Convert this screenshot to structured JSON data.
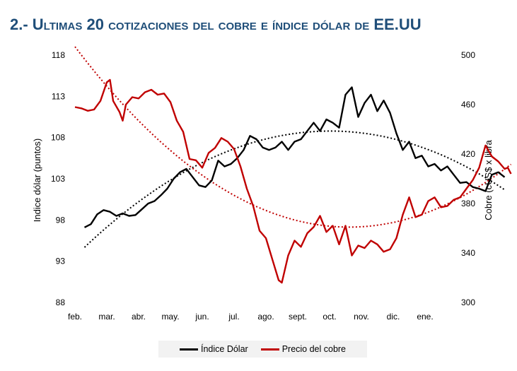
{
  "colors": {
    "dollar": "#000000",
    "copper": "#c00000",
    "title": "#1f4e79"
  },
  "chart_data": {
    "type": "line",
    "title": "2.- Ultimas 20 cotizaciones del cobre e índice dólar de EE.UU",
    "x_labels": [
      "feb.",
      "mar.",
      "abr.",
      "may.",
      "jun.",
      "jul.",
      "ago.",
      "sept.",
      "oct.",
      "nov.",
      "dic.",
      "ene."
    ],
    "y_left": {
      "label": "Indice dólar (puntos)",
      "ticks": [
        "118",
        "113",
        "108",
        "103",
        "98",
        "93",
        "88"
      ],
      "range": [
        88,
        118
      ]
    },
    "y_right": {
      "label": "Cobre (cUS$ x libra",
      "ticks": [
        "500",
        "460",
        "420",
        "380",
        "340",
        "300"
      ],
      "range": [
        300,
        500
      ]
    },
    "grid": false,
    "legend_position": "bottom",
    "series": [
      {
        "name": "Índice Dólar",
        "axis": "left",
        "trendline": "polynomial",
        "points": [
          [
            0.3,
            97.1
          ],
          [
            0.5,
            97.5
          ],
          [
            0.7,
            98.7
          ],
          [
            0.9,
            99.2
          ],
          [
            1.1,
            99.0
          ],
          [
            1.3,
            98.5
          ],
          [
            1.5,
            98.8
          ],
          [
            1.7,
            98.5
          ],
          [
            1.9,
            98.6
          ],
          [
            2.1,
            99.3
          ],
          [
            2.3,
            100.0
          ],
          [
            2.5,
            100.3
          ],
          [
            2.7,
            101.0
          ],
          [
            2.9,
            101.8
          ],
          [
            3.1,
            103.0
          ],
          [
            3.3,
            103.8
          ],
          [
            3.5,
            104.2
          ],
          [
            3.7,
            103.2
          ],
          [
            3.9,
            102.2
          ],
          [
            4.1,
            102.0
          ],
          [
            4.3,
            102.8
          ],
          [
            4.5,
            105.2
          ],
          [
            4.7,
            104.5
          ],
          [
            4.9,
            104.8
          ],
          [
            5.1,
            105.5
          ],
          [
            5.3,
            106.5
          ],
          [
            5.5,
            108.2
          ],
          [
            5.7,
            107.8
          ],
          [
            5.9,
            106.8
          ],
          [
            6.1,
            106.5
          ],
          [
            6.3,
            106.8
          ],
          [
            6.5,
            107.5
          ],
          [
            6.7,
            106.5
          ],
          [
            6.9,
            107.5
          ],
          [
            7.1,
            107.8
          ],
          [
            7.3,
            108.8
          ],
          [
            7.5,
            109.8
          ],
          [
            7.7,
            108.8
          ],
          [
            7.9,
            110.2
          ],
          [
            8.1,
            109.8
          ],
          [
            8.3,
            109.2
          ],
          [
            8.5,
            113.2
          ],
          [
            8.7,
            114.1
          ],
          [
            8.9,
            110.5
          ],
          [
            9.1,
            112.2
          ],
          [
            9.3,
            113.2
          ],
          [
            9.5,
            111.2
          ],
          [
            9.7,
            112.5
          ],
          [
            9.9,
            111.0
          ],
          [
            10.1,
            108.5
          ],
          [
            10.3,
            106.5
          ],
          [
            10.5,
            107.5
          ],
          [
            10.7,
            105.5
          ],
          [
            10.9,
            105.8
          ],
          [
            11.1,
            104.5
          ],
          [
            11.3,
            104.8
          ],
          [
            11.5,
            104.0
          ],
          [
            11.7,
            104.5
          ],
          [
            11.9,
            103.5
          ],
          [
            12.1,
            102.5
          ],
          [
            12.3,
            102.6
          ],
          [
            12.5,
            102.0
          ],
          [
            12.7,
            101.8
          ],
          [
            12.9,
            101.5
          ],
          [
            13.1,
            103.5
          ],
          [
            13.3,
            103.8
          ],
          [
            13.5,
            103.2
          ]
        ]
      },
      {
        "name": "Precio del cobre",
        "axis": "right",
        "trendline": "polynomial",
        "points": [
          [
            0.0,
            458
          ],
          [
            0.2,
            457
          ],
          [
            0.4,
            455
          ],
          [
            0.6,
            456
          ],
          [
            0.8,
            463
          ],
          [
            1.0,
            478
          ],
          [
            1.1,
            480
          ],
          [
            1.2,
            463
          ],
          [
            1.4,
            454
          ],
          [
            1.5,
            447
          ],
          [
            1.6,
            460
          ],
          [
            1.8,
            466
          ],
          [
            2.0,
            465
          ],
          [
            2.2,
            470
          ],
          [
            2.4,
            472
          ],
          [
            2.6,
            468
          ],
          [
            2.8,
            469
          ],
          [
            3.0,
            462
          ],
          [
            3.2,
            447
          ],
          [
            3.4,
            438
          ],
          [
            3.6,
            416
          ],
          [
            3.8,
            415
          ],
          [
            4.0,
            409
          ],
          [
            4.2,
            421
          ],
          [
            4.4,
            425
          ],
          [
            4.6,
            433
          ],
          [
            4.8,
            430
          ],
          [
            5.0,
            424
          ],
          [
            5.2,
            410
          ],
          [
            5.4,
            392
          ],
          [
            5.6,
            378
          ],
          [
            5.8,
            358
          ],
          [
            6.0,
            352
          ],
          [
            6.2,
            335
          ],
          [
            6.4,
            318
          ],
          [
            6.5,
            316
          ],
          [
            6.7,
            338
          ],
          [
            6.9,
            350
          ],
          [
            7.1,
            345
          ],
          [
            7.3,
            356
          ],
          [
            7.5,
            361
          ],
          [
            7.7,
            370
          ],
          [
            7.9,
            357
          ],
          [
            8.1,
            362
          ],
          [
            8.3,
            347
          ],
          [
            8.5,
            362
          ],
          [
            8.7,
            338
          ],
          [
            8.9,
            346
          ],
          [
            9.1,
            344
          ],
          [
            9.3,
            350
          ],
          [
            9.5,
            347
          ],
          [
            9.7,
            341
          ],
          [
            9.9,
            343
          ],
          [
            10.1,
            352
          ],
          [
            10.3,
            371
          ],
          [
            10.5,
            385
          ],
          [
            10.7,
            369
          ],
          [
            10.9,
            371
          ],
          [
            11.1,
            382
          ],
          [
            11.3,
            385
          ],
          [
            11.5,
            377
          ],
          [
            11.7,
            378
          ],
          [
            11.9,
            383
          ],
          [
            12.1,
            385
          ],
          [
            12.3,
            392
          ],
          [
            12.5,
            399
          ],
          [
            12.7,
            409
          ],
          [
            12.9,
            427
          ],
          [
            13.1,
            418
          ],
          [
            13.3,
            414
          ],
          [
            13.5,
            408
          ],
          [
            13.6,
            409
          ],
          [
            13.7,
            404
          ]
        ]
      }
    ]
  },
  "legend": {
    "dollar": "Índice Dólar",
    "copper": "Precio del cobre"
  }
}
